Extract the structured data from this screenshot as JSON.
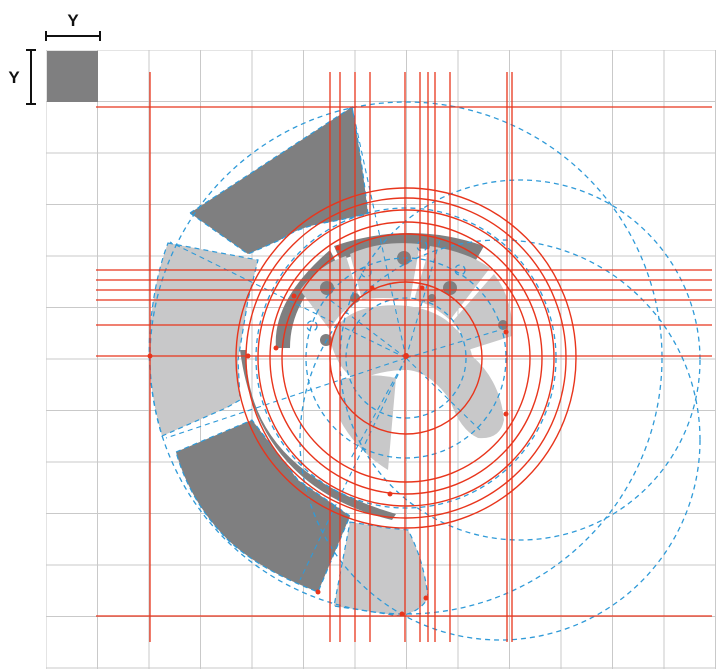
{
  "scale_labels": {
    "horizontal": "Y",
    "vertical": "Y"
  },
  "colors": {
    "background": "#ffffff",
    "grid": "#c9c9c9",
    "construction": "#e8351c",
    "guide": "#2f9ad8",
    "dark_fill": "#7f7f80",
    "light_fill": "#c8c8c9"
  }
}
